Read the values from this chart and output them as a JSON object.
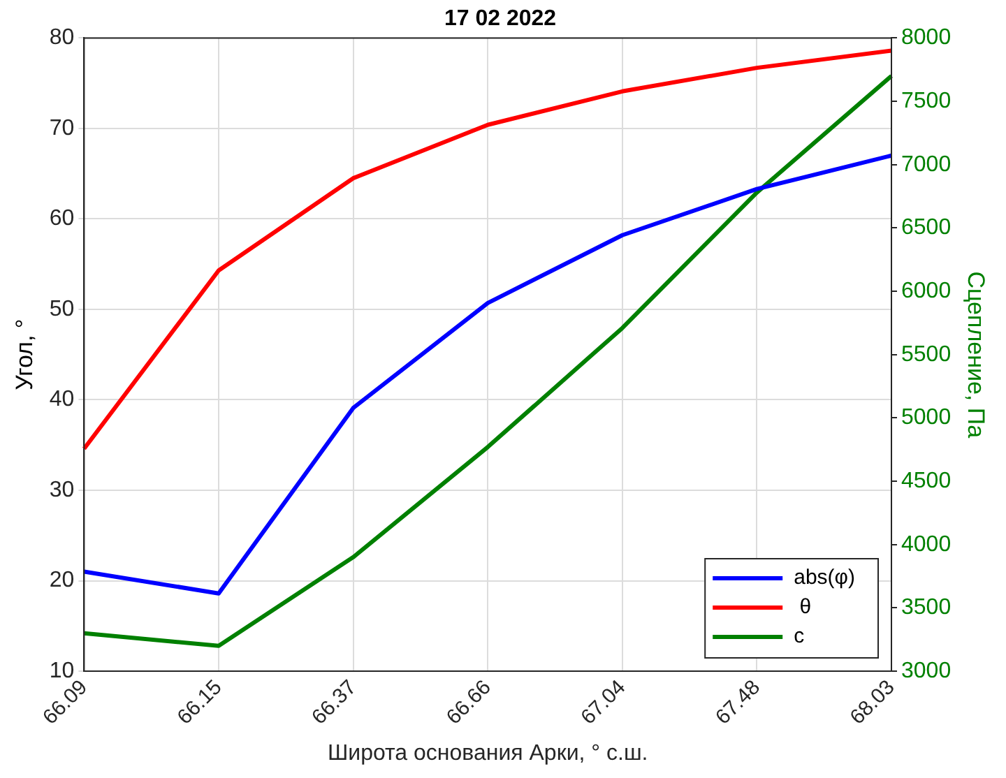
{
  "chart_data": {
    "type": "line",
    "title": "17 02 2022",
    "xlabel": "Широта основания Арки, ° с.ш.",
    "ylabel": "Угол, °",
    "y2label": "Сцепление, Па",
    "categories": [
      "66.09",
      "66.15",
      "66.37",
      "66.66",
      "67.04",
      "67.48",
      "68.03"
    ],
    "series": [
      {
        "name": "abs(φ)",
        "color": "#0000ff",
        "values": [
          21.0,
          18.6,
          39.1,
          50.7,
          58.2,
          63.3,
          67.0
        ]
      },
      {
        "name": " θ",
        "color": "#ff0000",
        "values": [
          34.6,
          54.3,
          64.5,
          70.4,
          74.1,
          76.7,
          78.6
        ]
      },
      {
        "name": "c",
        "color": "#008000",
        "axis": "y2",
        "values": [
          3300,
          3200,
          3900,
          4770,
          5710,
          6780,
          7700
        ]
      }
    ],
    "ylim": [
      10,
      80
    ],
    "yticks": [
      10,
      20,
      30,
      40,
      50,
      60,
      70,
      80
    ],
    "y2lim": [
      3000,
      8000
    ],
    "y2ticks": [
      3000,
      3500,
      4000,
      4500,
      5000,
      5500,
      6000,
      6500,
      7000,
      7500,
      8000
    ],
    "grid": true,
    "legend": "bottom right",
    "marker": "none",
    "line_style": "solid"
  }
}
